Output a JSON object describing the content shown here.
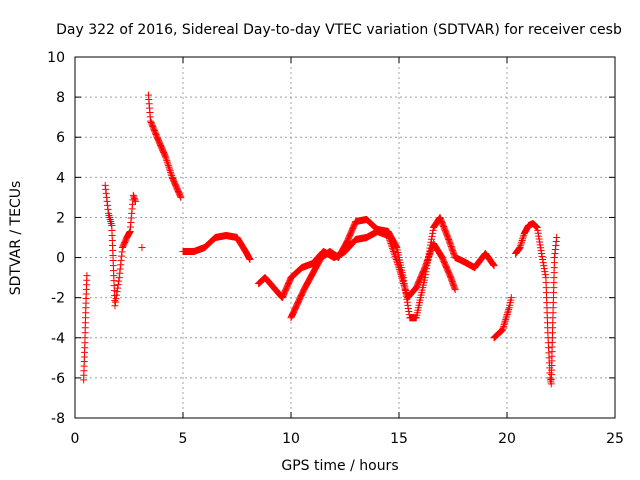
{
  "chart_data": {
    "type": "scatter",
    "title": "Day 322 of 2016, Sidereal Day-to-day VTEC variation (SDTVAR) for receiver cesb",
    "xlabel": "GPS time / hours",
    "ylabel": "SDTVAR / TECUs",
    "xlim": [
      0,
      25
    ],
    "ylim": [
      -8,
      10
    ],
    "xticks": [
      0,
      5,
      10,
      15,
      20,
      25
    ],
    "yticks": [
      -8,
      -6,
      -4,
      -2,
      0,
      2,
      4,
      6,
      8,
      10
    ],
    "grid": true,
    "marker": "+",
    "marker_color": "#ff0000",
    "series": [
      {
        "name": "SDTVAR",
        "segments": [
          [
            [
              0.4,
              -6.1
            ],
            [
              0.45,
              -4.5
            ],
            [
              0.5,
              -2.5
            ],
            [
              0.55,
              -0.9
            ]
          ],
          [
            [
              1.4,
              3.6
            ],
            [
              1.55,
              2.2
            ],
            [
              1.7,
              1.6
            ],
            [
              1.85,
              -2.4
            ],
            [
              2.05,
              -1.0
            ],
            [
              2.2,
              0.5
            ],
            [
              2.4,
              1.0
            ],
            [
              2.55,
              1.3
            ],
            [
              2.7,
              3.1
            ],
            [
              2.8,
              2.8
            ]
          ],
          [
            [
              3.1,
              0.5
            ]
          ],
          [
            [
              3.4,
              8.1
            ],
            [
              3.5,
              6.8
            ],
            [
              3.8,
              6.0
            ],
            [
              4.2,
              5.0
            ],
            [
              4.5,
              4.0
            ],
            [
              4.9,
              3.0
            ]
          ],
          [
            [
              5.0,
              0.3
            ],
            [
              5.5,
              0.3
            ],
            [
              6.0,
              0.5
            ],
            [
              6.5,
              1.0
            ],
            [
              7.0,
              1.1
            ],
            [
              7.5,
              1.0
            ],
            [
              7.9,
              0.3
            ],
            [
              8.1,
              -0.1
            ]
          ],
          [
            [
              8.5,
              -1.3
            ],
            [
              8.8,
              -1.0
            ],
            [
              9.2,
              -1.5
            ],
            [
              9.6,
              -2.0
            ],
            [
              10.0,
              -1.0
            ],
            [
              10.5,
              -0.5
            ],
            [
              11.0,
              -0.3
            ],
            [
              11.5,
              0.3
            ],
            [
              12.0,
              0.0
            ],
            [
              12.5,
              0.3
            ],
            [
              13.0,
              0.9
            ],
            [
              13.5,
              1.0
            ],
            [
              14.0,
              1.3
            ],
            [
              14.5,
              1.1
            ],
            [
              15.0,
              -0.5
            ],
            [
              15.4,
              -2.0
            ],
            [
              15.8,
              -1.5
            ],
            [
              16.2,
              -0.5
            ],
            [
              16.6,
              0.7
            ],
            [
              17.0,
              0.0
            ],
            [
              17.4,
              -1.0
            ],
            [
              17.6,
              -1.6
            ]
          ],
          [
            [
              10.0,
              -3.0
            ],
            [
              10.3,
              -2.3
            ],
            [
              10.6,
              -1.6
            ],
            [
              11.0,
              -0.8
            ],
            [
              11.4,
              0.0
            ],
            [
              11.8,
              0.3
            ],
            [
              12.2,
              0.0
            ],
            [
              12.6,
              0.8
            ],
            [
              13.0,
              1.8
            ],
            [
              13.5,
              1.9
            ],
            [
              14.0,
              1.4
            ],
            [
              14.5,
              1.3
            ],
            [
              14.9,
              0.5
            ],
            [
              15.2,
              -1.0
            ],
            [
              15.5,
              -3.0
            ],
            [
              15.8,
              -3.0
            ],
            [
              16.2,
              -1.0
            ],
            [
              16.6,
              1.5
            ],
            [
              16.9,
              2.0
            ],
            [
              17.3,
              0.9
            ],
            [
              17.6,
              0.0
            ],
            [
              18.0,
              -0.2
            ],
            [
              18.5,
              -0.5
            ],
            [
              19.0,
              0.2
            ],
            [
              19.4,
              -0.4
            ]
          ],
          [
            [
              19.4,
              -4.0
            ],
            [
              19.8,
              -3.6
            ],
            [
              20.1,
              -2.5
            ],
            [
              20.2,
              -2.0
            ]
          ],
          [
            [
              20.4,
              0.2
            ],
            [
              20.6,
              0.5
            ],
            [
              20.8,
              1.2
            ],
            [
              21.0,
              1.6
            ],
            [
              21.2,
              1.7
            ],
            [
              21.4,
              1.5
            ],
            [
              21.6,
              0.2
            ],
            [
              21.8,
              -1.0
            ],
            [
              21.9,
              -4.0
            ],
            [
              22.0,
              -6.0
            ],
            [
              22.05,
              -6.3
            ],
            [
              22.1,
              -4.0
            ],
            [
              22.2,
              0.0
            ],
            [
              22.3,
              1.0
            ]
          ]
        ]
      }
    ]
  }
}
